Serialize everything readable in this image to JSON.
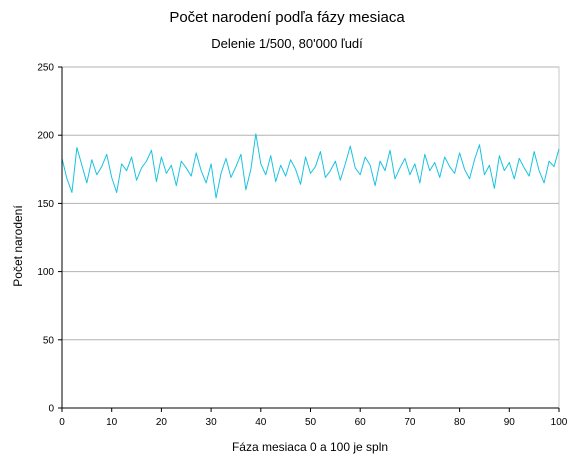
{
  "chart_data": {
    "type": "line",
    "title": "Počet narodení podľa fázy mesiaca",
    "subtitle": "Delenie 1/500, 80'000 ľudí",
    "xlabel": "Fáza mesiaca 0 a 100 je spln",
    "ylabel": "Počet narodení",
    "xlim": [
      0,
      100
    ],
    "ylim": [
      0,
      250
    ],
    "xticks": [
      "0",
      "10",
      "20",
      "30",
      "40",
      "50",
      "60",
      "70",
      "80",
      "90",
      "100"
    ],
    "yticks": [
      "0",
      "50",
      "100",
      "150",
      "200",
      "250"
    ],
    "grid": true,
    "series": [
      {
        "color": "#19c3e0",
        "x": [
          0,
          1,
          2,
          3,
          4,
          5,
          6,
          7,
          8,
          9,
          10,
          11,
          12,
          13,
          14,
          15,
          16,
          17,
          18,
          19,
          20,
          21,
          22,
          23,
          24,
          25,
          26,
          27,
          28,
          29,
          30,
          31,
          32,
          33,
          34,
          35,
          36,
          37,
          38,
          39,
          40,
          41,
          42,
          43,
          44,
          45,
          46,
          47,
          48,
          49,
          50,
          51,
          52,
          53,
          54,
          55,
          56,
          57,
          58,
          59,
          60,
          61,
          62,
          63,
          64,
          65,
          66,
          67,
          68,
          69,
          70,
          71,
          72,
          73,
          74,
          75,
          76,
          77,
          78,
          79,
          80,
          81,
          82,
          83,
          84,
          85,
          86,
          87,
          88,
          89,
          90,
          91,
          92,
          93,
          94,
          95,
          96,
          97,
          98,
          99,
          100
        ],
        "values": [
          183,
          168,
          158,
          191,
          178,
          165,
          182,
          171,
          177,
          186,
          169,
          158,
          179,
          174,
          184,
          167,
          176,
          181,
          189,
          166,
          184,
          172,
          178,
          163,
          181,
          176,
          170,
          187,
          174,
          165,
          179,
          154,
          172,
          183,
          169,
          177,
          186,
          160,
          175,
          201,
          179,
          171,
          185,
          166,
          178,
          170,
          182,
          175,
          164,
          184,
          172,
          177,
          188,
          169,
          174,
          181,
          167,
          179,
          192,
          176,
          171,
          184,
          178,
          163,
          181,
          174,
          189,
          168,
          176,
          183,
          171,
          179,
          165,
          186,
          174,
          180,
          169,
          184,
          177,
          172,
          187,
          175,
          168,
          182,
          193,
          171,
          178,
          161,
          185,
          174,
          180,
          168,
          183,
          176,
          170,
          188,
          174,
          165,
          181,
          177,
          190
        ]
      }
    ]
  }
}
